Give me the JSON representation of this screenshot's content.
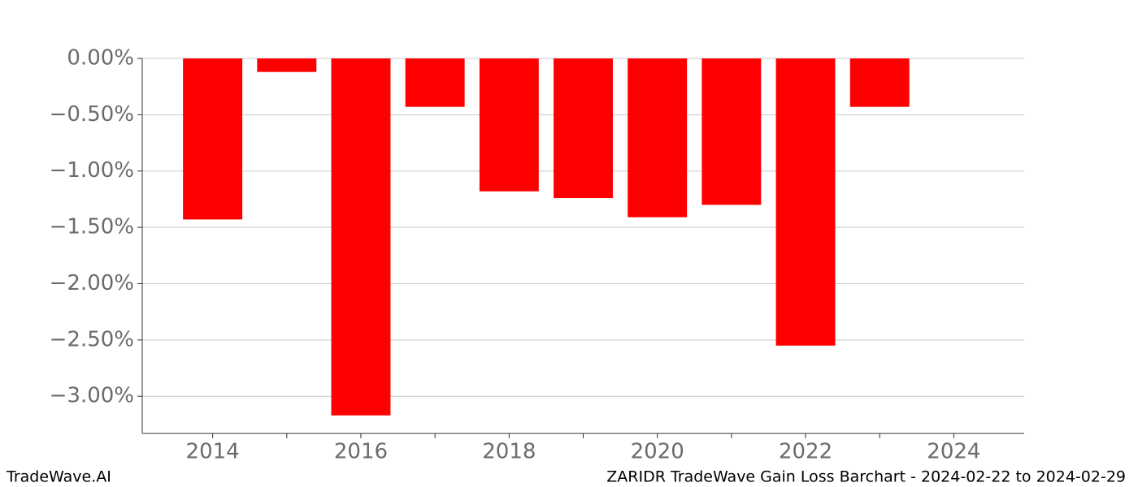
{
  "chart_data": {
    "type": "bar",
    "title": "ZARIDR TradeWave Gain Loss Barchart - 2024-02-22 to 2024-02-29",
    "watermark": "TradeWave.AI",
    "x": [
      2014,
      2015,
      2016,
      2017,
      2018,
      2019,
      2020,
      2021,
      2022,
      2023
    ],
    "values": [
      -1.43,
      -0.12,
      -3.17,
      -0.43,
      -1.18,
      -1.24,
      -1.41,
      -1.3,
      -2.55,
      -0.43
    ],
    "color": "#ff0000",
    "xlim": [
      2013.05,
      2024.95
    ],
    "xticks": [
      2014,
      2016,
      2018,
      2020,
      2022,
      2024
    ],
    "xticks_minor": [
      2015,
      2017,
      2019,
      2021,
      2023
    ],
    "ylim": [
      -3.33,
      0
    ],
    "yticks": [
      {
        "value": 0,
        "label": "0.00%"
      },
      {
        "value": -0.5,
        "label": "−0.50%"
      },
      {
        "value": -1,
        "label": "−1.00%"
      },
      {
        "value": -1.5,
        "label": "−1.50%"
      },
      {
        "value": -2,
        "label": "−2.00%"
      },
      {
        "value": -2.5,
        "label": "−2.50%"
      },
      {
        "value": -3,
        "label": "−3.00%"
      }
    ],
    "grid": true
  }
}
